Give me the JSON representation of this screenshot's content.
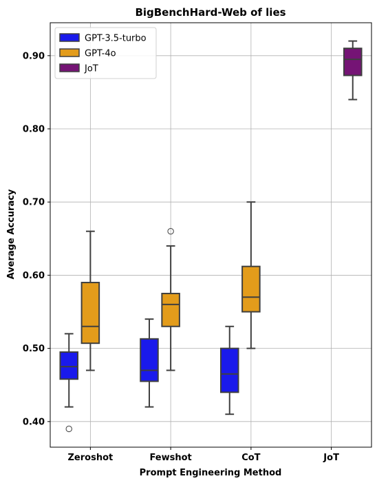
{
  "chart_data": {
    "type": "box",
    "title": "BigBenchHard-Web of lies",
    "xlabel": "Prompt Engineering Method",
    "ylabel": "Average Accuracy",
    "ylim": [
      0.365,
      0.945
    ],
    "yticks": [
      "0.40",
      "0.50",
      "0.60",
      "0.70",
      "0.80",
      "0.90"
    ],
    "grid": true,
    "legend_position": "upper left",
    "categories": [
      "Zeroshot",
      "Fewshot",
      "CoT",
      "JoT"
    ],
    "series": [
      {
        "name": "GPT-3.5-turbo",
        "color": "#1a1aeb",
        "boxes": [
          {
            "category": "Zeroshot",
            "whisker_low": 0.42,
            "q1": 0.458,
            "median": 0.475,
            "q3": 0.495,
            "whisker_high": 0.52,
            "outliers": [
              0.39
            ]
          },
          {
            "category": "Fewshot",
            "whisker_low": 0.42,
            "q1": 0.455,
            "median": 0.47,
            "q3": 0.513,
            "whisker_high": 0.54,
            "outliers": []
          },
          {
            "category": "CoT",
            "whisker_low": 0.41,
            "q1": 0.44,
            "median": 0.465,
            "q3": 0.5,
            "whisker_high": 0.53,
            "outliers": []
          }
        ]
      },
      {
        "name": "GPT-4o",
        "color": "#e39c1b",
        "boxes": [
          {
            "category": "Zeroshot",
            "whisker_low": 0.47,
            "q1": 0.507,
            "median": 0.53,
            "q3": 0.59,
            "whisker_high": 0.66,
            "outliers": []
          },
          {
            "category": "Fewshot",
            "whisker_low": 0.47,
            "q1": 0.53,
            "median": 0.56,
            "q3": 0.575,
            "whisker_high": 0.64,
            "outliers": [
              0.66
            ]
          },
          {
            "category": "CoT",
            "whisker_low": 0.5,
            "q1": 0.55,
            "median": 0.57,
            "q3": 0.612,
            "whisker_high": 0.7,
            "outliers": []
          }
        ]
      },
      {
        "name": "JoT",
        "color": "#751475",
        "boxes": [
          {
            "category": "JoT",
            "whisker_low": 0.84,
            "q1": 0.873,
            "median": 0.895,
            "q3": 0.91,
            "whisker_high": 0.92,
            "outliers": []
          }
        ]
      }
    ]
  }
}
